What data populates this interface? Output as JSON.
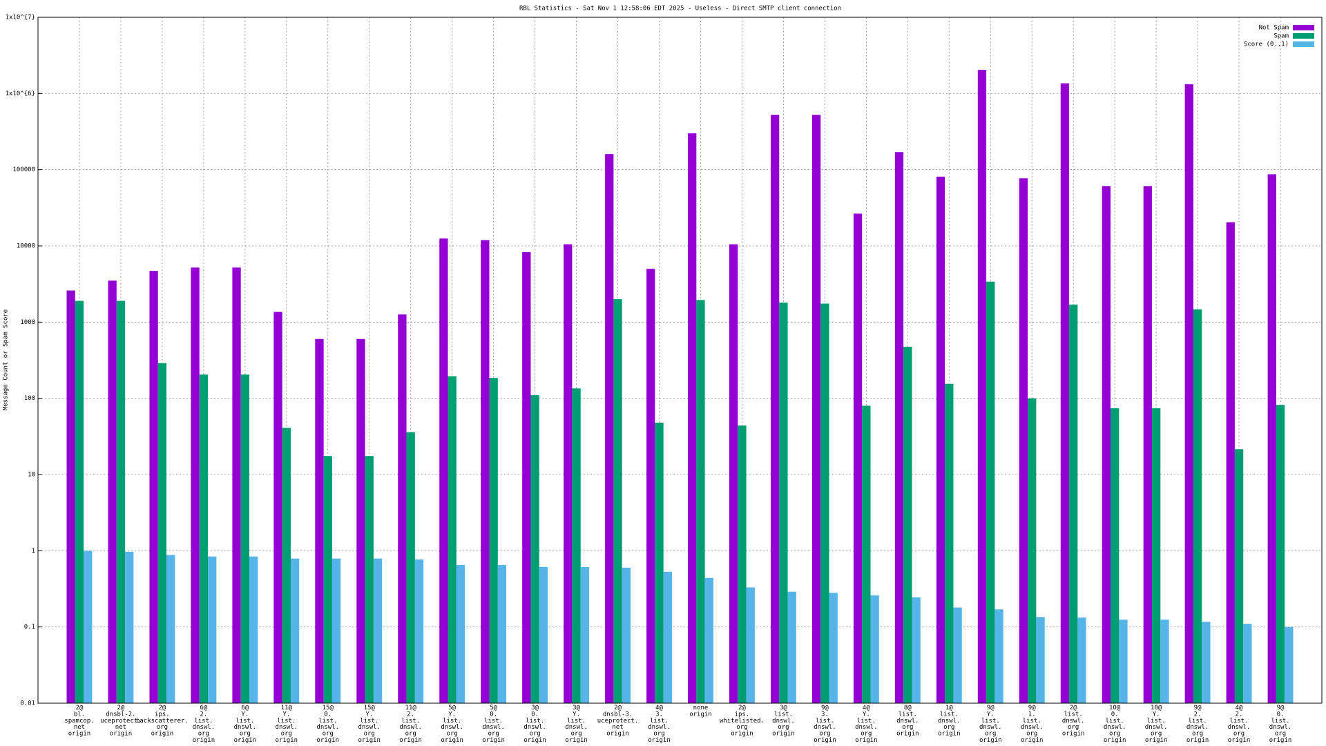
{
  "chart_data": {
    "type": "bar",
    "title": "RBL Statistics - Sat Nov  1 12:58:06 EDT 2025 - Useless - Direct SMTP client connection",
    "y_label": "Message Count or Spam Score",
    "categories": [
      "2@\nbl.\nspamcop.\nnet\norigin",
      "2@\ndnsbl-2.\nuceprotect.\nnet\norigin",
      "2@\nips.\nbackscatterer.\norg\norigin",
      "6@\n2.\nlist.\ndnswl.\norg\norigin",
      "6@\nY.\nlist.\ndnswl.\norg\norigin",
      "11@\nY.\nlist.\ndnswl.\norg\norigin",
      "15@\n0.\nlist.\ndnswl.\norg\norigin",
      "15@\nY.\nlist.\ndnswl.\norg\norigin",
      "11@\n2.\nlist.\ndnswl.\norg\norigin",
      "5@\nY.\nlist.\ndnswl.\norg\norigin",
      "5@\n0.\nlist.\ndnswl.\norg\norigin",
      "3@\n0.\nlist.\ndnswl.\norg\norigin",
      "3@\nY.\nlist.\ndnswl.\norg\norigin",
      "2@\ndnsbl-3.\nuceprotect.\nnet\norigin",
      "4@\n3.\nlist.\ndnswl.\norg\norigin",
      "none\norigin",
      "2@\nips.\nwhitelisted.\norg\norigin",
      "3@\nlist.\ndnswl.\norg\norigin",
      "9@\n3.\nlist.\ndnswl.\norg\norigin",
      "4@\nY.\nlist.\ndnswl.\norg\norigin",
      "8@\nlist.\ndnswl.\norg\norigin",
      "1@\nlist.\ndnswl.\norg\norigin",
      "9@\nY.\nlist.\ndnswl.\norg\norigin",
      "9@\n1.\nlist.\ndnswl.\norg\norigin",
      "2@\nlist.\ndnswl.\norg\norigin",
      "10@\n0.\nlist.\ndnswl.\norg\norigin",
      "10@\nY.\nlist.\ndnswl.\norg\norigin",
      "9@\n2.\nlist.\ndnswl.\norg\norigin",
      "4@\n2.\nlist.\ndnswl.\norg\norigin",
      "9@\n0.\nlist.\ndnswl.\norg\norigin"
    ],
    "series": [
      {
        "name": "Not Spam",
        "color": "#9400d3",
        "values": [
          2600,
          3500,
          4700,
          5200,
          5200,
          1360,
          600,
          600,
          1260,
          12500,
          11900,
          8300,
          10500,
          160000,
          5000,
          300000,
          10500,
          525000,
          525000,
          26500,
          170000,
          81000,
          2040000,
          77000,
          1360000,
          61000,
          61000,
          1320000,
          20400,
          87000
        ]
      },
      {
        "name": "Spam",
        "color": "#009e73",
        "values": [
          1900,
          1900,
          290,
          205,
          205,
          41,
          17.5,
          17.5,
          36,
          195,
          185,
          110,
          135,
          2000,
          48,
          1950,
          44,
          1800,
          1750,
          80,
          475,
          155,
          3400,
          100,
          1700,
          74,
          74,
          1470,
          21.5,
          82
        ]
      },
      {
        "name": "Score (0..1)",
        "color": "#56b4e9",
        "values": [
          1.0,
          0.97,
          0.88,
          0.84,
          0.84,
          0.79,
          0.79,
          0.79,
          0.77,
          0.65,
          0.65,
          0.61,
          0.61,
          0.6,
          0.53,
          0.44,
          0.33,
          0.29,
          0.28,
          0.26,
          0.245,
          0.18,
          0.17,
          0.135,
          0.133,
          0.125,
          0.125,
          0.117,
          0.11,
          0.1
        ]
      }
    ],
    "log_scale": true,
    "ylim": [
      0.01,
      10000000
    ],
    "yticks": [
      0.01,
      0.1,
      1,
      10,
      100,
      1000,
      10000,
      100000,
      {
        "value": 1000000,
        "label": "1x10^{6}"
      },
      {
        "value": 10000000,
        "label": "1x10^{7}"
      }
    ],
    "grid": true,
    "legend": "top-right"
  }
}
